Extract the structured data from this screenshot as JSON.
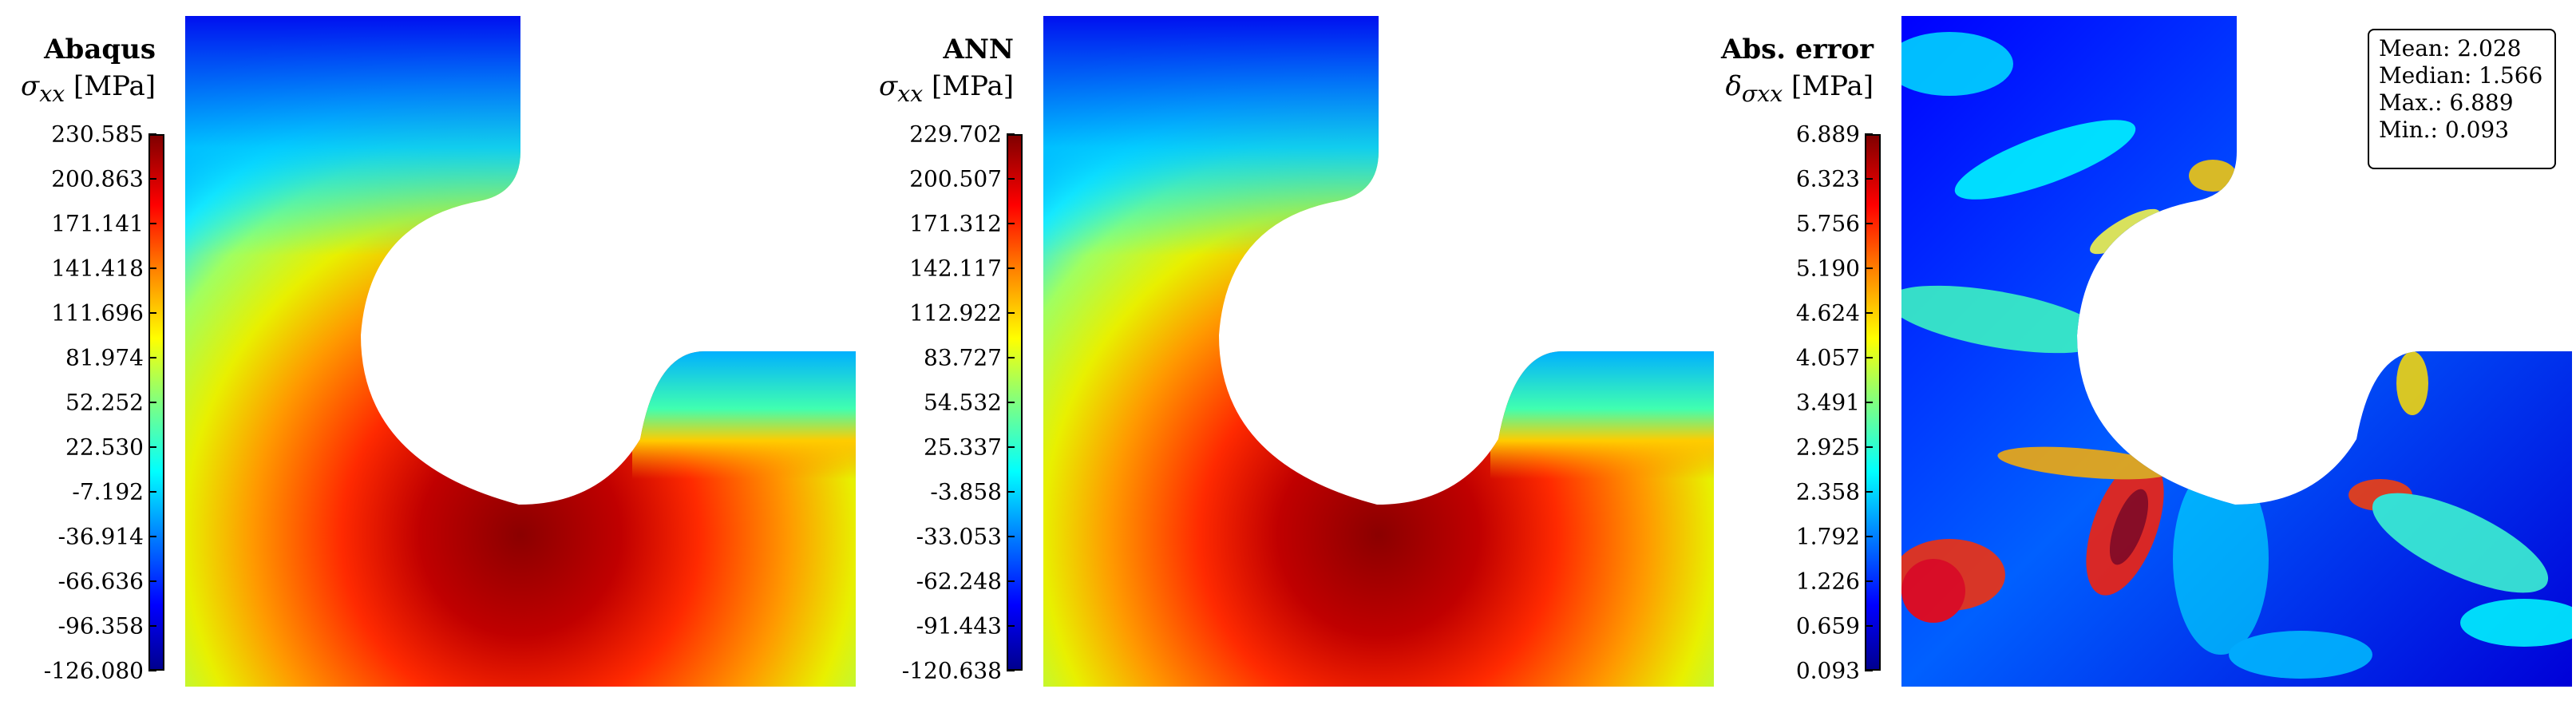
{
  "panels": [
    {
      "title": "Abaqus",
      "symbol": "σ",
      "sub": "xx",
      "unit": "[MPa]",
      "ticks": [
        "230.585",
        "200.863",
        "171.141",
        "141.418",
        "111.696",
        "81.974",
        "52.252",
        "22.530",
        "-7.192",
        "-36.914",
        "-66.636",
        "-96.358",
        "-126.080"
      ]
    },
    {
      "title": "ANN",
      "symbol": "σ",
      "sub": "xx",
      "unit": "[MPa]",
      "ticks": [
        "229.702",
        "200.507",
        "171.312",
        "142.117",
        "112.922",
        "83.727",
        "54.532",
        "25.337",
        "-3.858",
        "-33.053",
        "-62.248",
        "-91.443",
        "-120.638"
      ]
    },
    {
      "title": "Abs. error",
      "symbol": "δ",
      "sub": "σxx",
      "unit": "[MPa]",
      "ticks": [
        "6.889",
        "6.323",
        "5.756",
        "5.190",
        "4.624",
        "4.057",
        "3.491",
        "2.925",
        "2.358",
        "1.792",
        "1.226",
        "0.659",
        "0.093"
      ]
    }
  ],
  "stats": {
    "mean": "Mean: 2.028",
    "median": "Median: 1.566",
    "max": "Max.: 6.889",
    "min": "Min.: 0.093"
  },
  "colors": {
    "dark_red": "#800000",
    "red": "#ff0000",
    "orange": "#ff8000",
    "yellow": "#ffff00",
    "cyan": "#00ffff",
    "blue": "#0000ff"
  }
}
